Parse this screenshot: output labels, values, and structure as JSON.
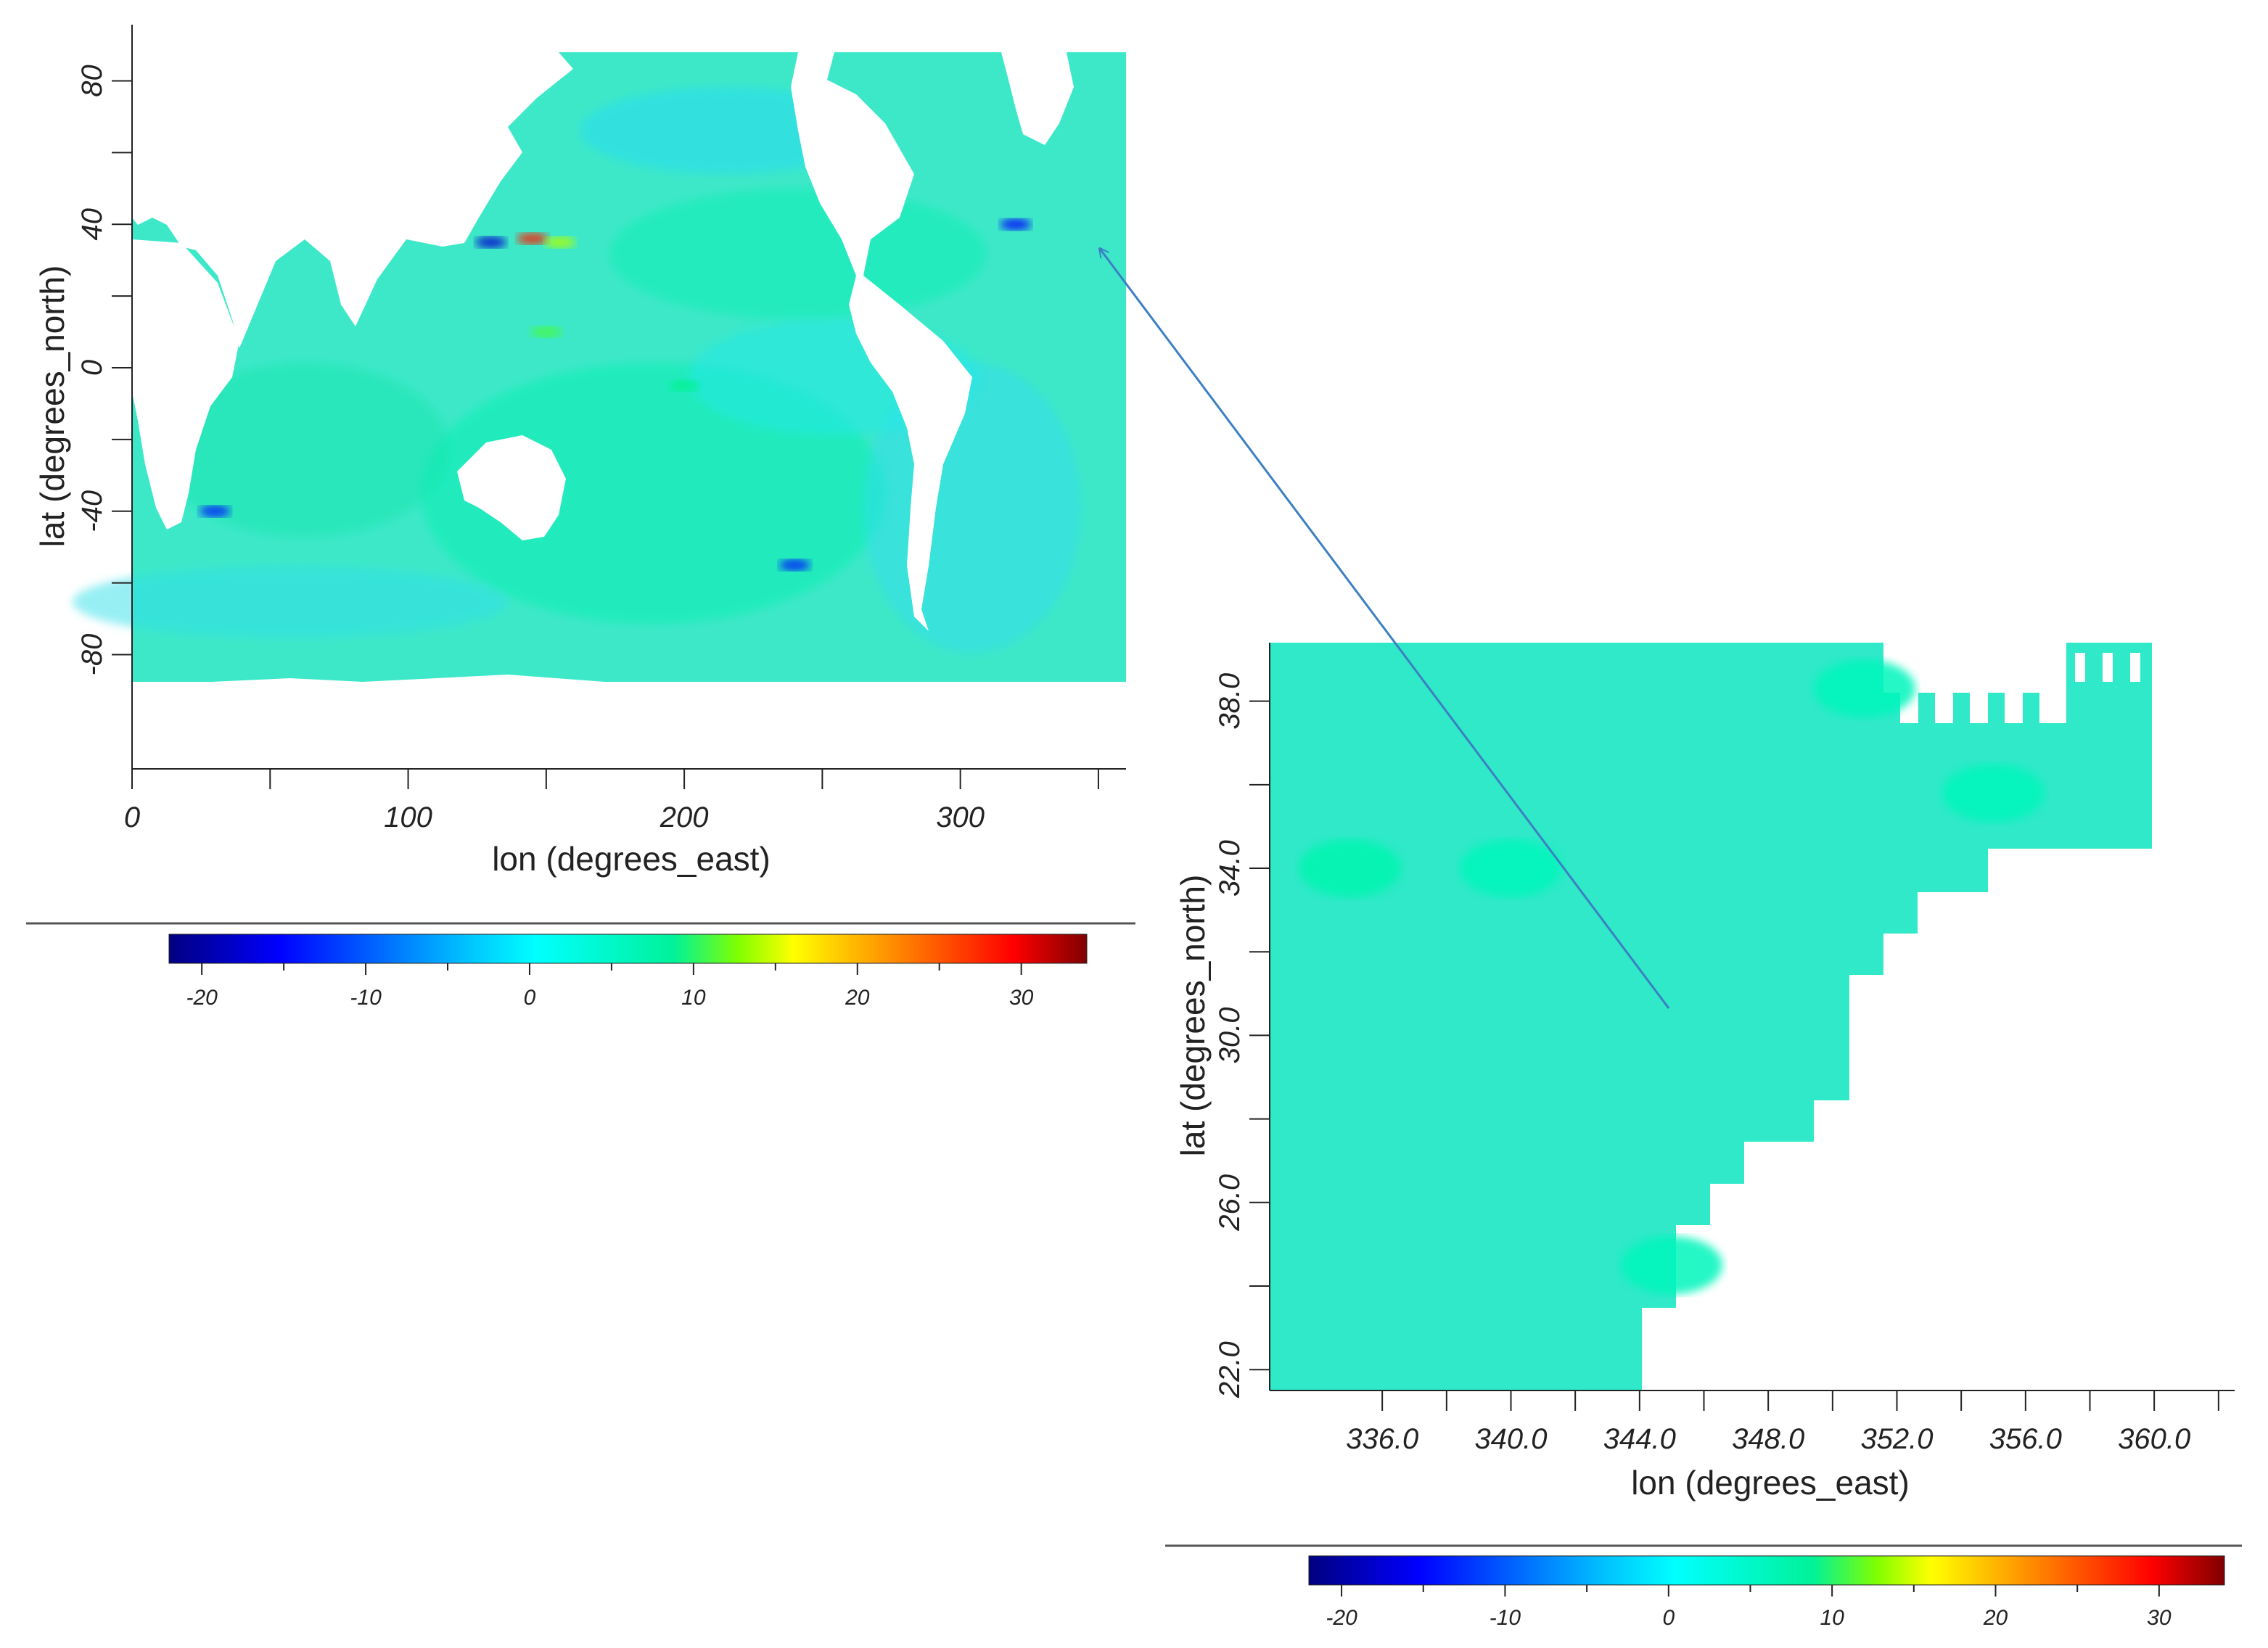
{
  "chart_data": [
    {
      "id": "global",
      "type": "heatmap",
      "title": "",
      "xlabel": "lon (degrees_east)",
      "ylabel": "lat (degrees_north)",
      "xlim": [
        0,
        360
      ],
      "ylim": [
        -90,
        88
      ],
      "x_ticks": [
        0,
        100,
        200,
        300
      ],
      "x_tick_labels": [
        "0",
        "100",
        "200",
        "300"
      ],
      "x_minor_ticks": [
        50,
        150,
        250,
        350
      ],
      "y_ticks": [
        80,
        40,
        0,
        -40,
        -80
      ],
      "y_tick_labels": [
        "80",
        "40",
        "0",
        "-40",
        "-80"
      ],
      "grid": false,
      "colorbar": {
        "range": [
          -22,
          34
        ],
        "ticks": [
          -20,
          -10,
          0,
          10,
          20,
          30
        ],
        "tick_labels": [
          "-20",
          "-10",
          "0",
          "10",
          "20",
          "30"
        ],
        "colormap": "jet",
        "position": "below"
      },
      "typical_value": 3,
      "features": [
        {
          "lon": 145,
          "lat": 36,
          "value": 28
        },
        {
          "lon": 155,
          "lat": 35,
          "value": 14
        },
        {
          "lon": 130,
          "lat": 35,
          "value": -18
        },
        {
          "lon": 150,
          "lat": 10,
          "value": 11
        },
        {
          "lon": 320,
          "lat": 40,
          "value": -15
        },
        {
          "lon": 240,
          "lat": -55,
          "value": -14
        },
        {
          "lon": 30,
          "lat": -40,
          "value": -14
        },
        {
          "lon": 200,
          "lat": -5,
          "value": 9
        }
      ]
    },
    {
      "id": "zoom",
      "type": "heatmap",
      "title": "",
      "xlabel": "lon (degrees_east)",
      "ylabel": "lat (degrees_north)",
      "xlim": [
        332.5,
        362.5
      ],
      "ylim": [
        21.5,
        39.4
      ],
      "x_ticks": [
        336,
        340,
        344,
        348,
        352,
        356,
        360
      ],
      "x_tick_labels": [
        "336.0",
        "340.0",
        "344.0",
        "348.0",
        "352.0",
        "356.0",
        "360.0"
      ],
      "y_ticks": [
        38,
        34,
        30,
        26,
        22
      ],
      "y_tick_labels": [
        "38.0",
        "34.0",
        "30.0",
        "26.0",
        "22.0"
      ],
      "grid": false,
      "colorbar": {
        "range": [
          -22,
          34
        ],
        "ticks": [
          -20,
          -10,
          0,
          10,
          20,
          30
        ],
        "tick_labels": [
          "-20",
          "-10",
          "0",
          "10",
          "20",
          "30"
        ],
        "colormap": "jet",
        "position": "below"
      },
      "typical_value": 4,
      "features": [
        {
          "lon": 335,
          "lat": 34,
          "value": 7
        },
        {
          "lon": 340,
          "lat": 34,
          "value": 6
        },
        {
          "lon": 351,
          "lat": 38.3,
          "value": 6
        },
        {
          "lon": 355,
          "lat": 35.8,
          "value": 6
        },
        {
          "lon": 345,
          "lat": 24.5,
          "value": 6
        }
      ]
    }
  ],
  "link_arrow": {
    "from_plot": "zoom",
    "to_plot": "global",
    "color": "#3b7fc4"
  }
}
